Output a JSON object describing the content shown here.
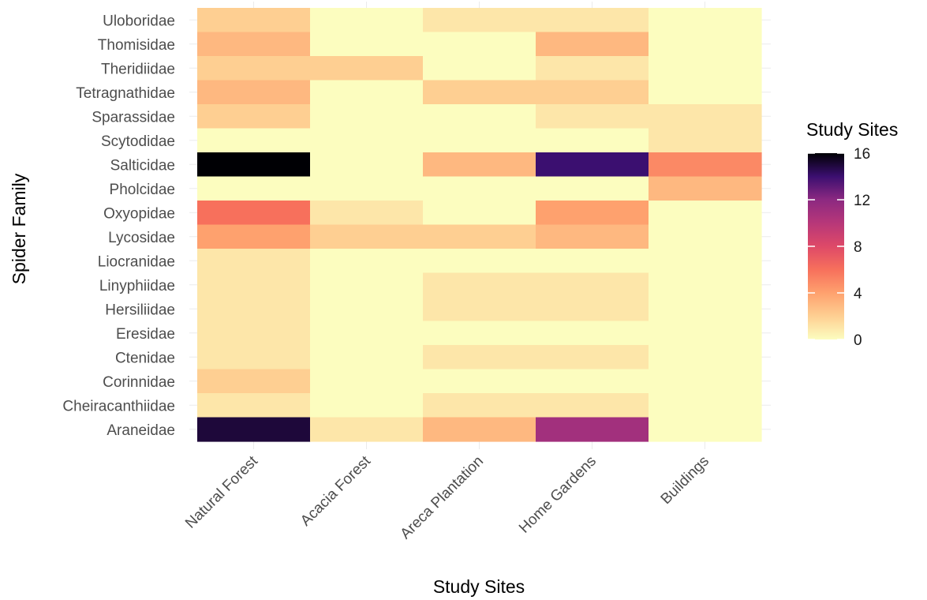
{
  "chart_data": {
    "type": "heatmap",
    "xlabel": "Study Sites",
    "ylabel": "Spider Family",
    "legend_title": "Study Sites",
    "legend_placement": "right",
    "colorscale": "magma_reversed",
    "color_range": [
      0,
      16
    ],
    "legend_ticks": [
      "0",
      "4",
      "8",
      "12",
      "16"
    ],
    "grid": true,
    "x_categories": [
      "Natural Forest",
      "Acacia Forest",
      "Areca Plantation",
      "Home Gardens",
      "Buildings"
    ],
    "y_categories": [
      "Uloboridae",
      "Thomisidae",
      "Theridiidae",
      "Tetragnathidae",
      "Sparassidae",
      "Scytodidae",
      "Salticidae",
      "Pholcidae",
      "Oxyopidae",
      "Lycosidae",
      "Liocranidae",
      "Linyphiidae",
      "Hersiliidae",
      "Eresidae",
      "Ctenidae",
      "Corinnidae",
      "Cheiracanthiidae",
      "Araneidae"
    ],
    "values": [
      [
        2,
        0,
        1,
        1,
        0
      ],
      [
        3,
        0,
        0,
        3,
        0
      ],
      [
        2,
        2,
        0,
        1,
        0
      ],
      [
        3,
        0,
        2,
        2,
        0
      ],
      [
        2,
        0,
        0,
        1,
        1
      ],
      [
        0,
        0,
        0,
        0,
        1
      ],
      [
        16,
        0,
        3,
        14,
        5
      ],
      [
        0,
        0,
        0,
        0,
        3
      ],
      [
        6,
        1,
        0,
        4,
        0
      ],
      [
        4,
        2,
        2,
        3,
        0
      ],
      [
        1,
        0,
        0,
        0,
        0
      ],
      [
        1,
        0,
        1,
        1,
        0
      ],
      [
        1,
        0,
        1,
        1,
        0
      ],
      [
        1,
        0,
        0,
        0,
        0
      ],
      [
        1,
        0,
        1,
        1,
        0
      ],
      [
        2,
        0,
        0,
        0,
        0
      ],
      [
        1,
        0,
        1,
        1,
        0
      ],
      [
        15,
        1,
        3,
        11,
        0
      ]
    ]
  }
}
